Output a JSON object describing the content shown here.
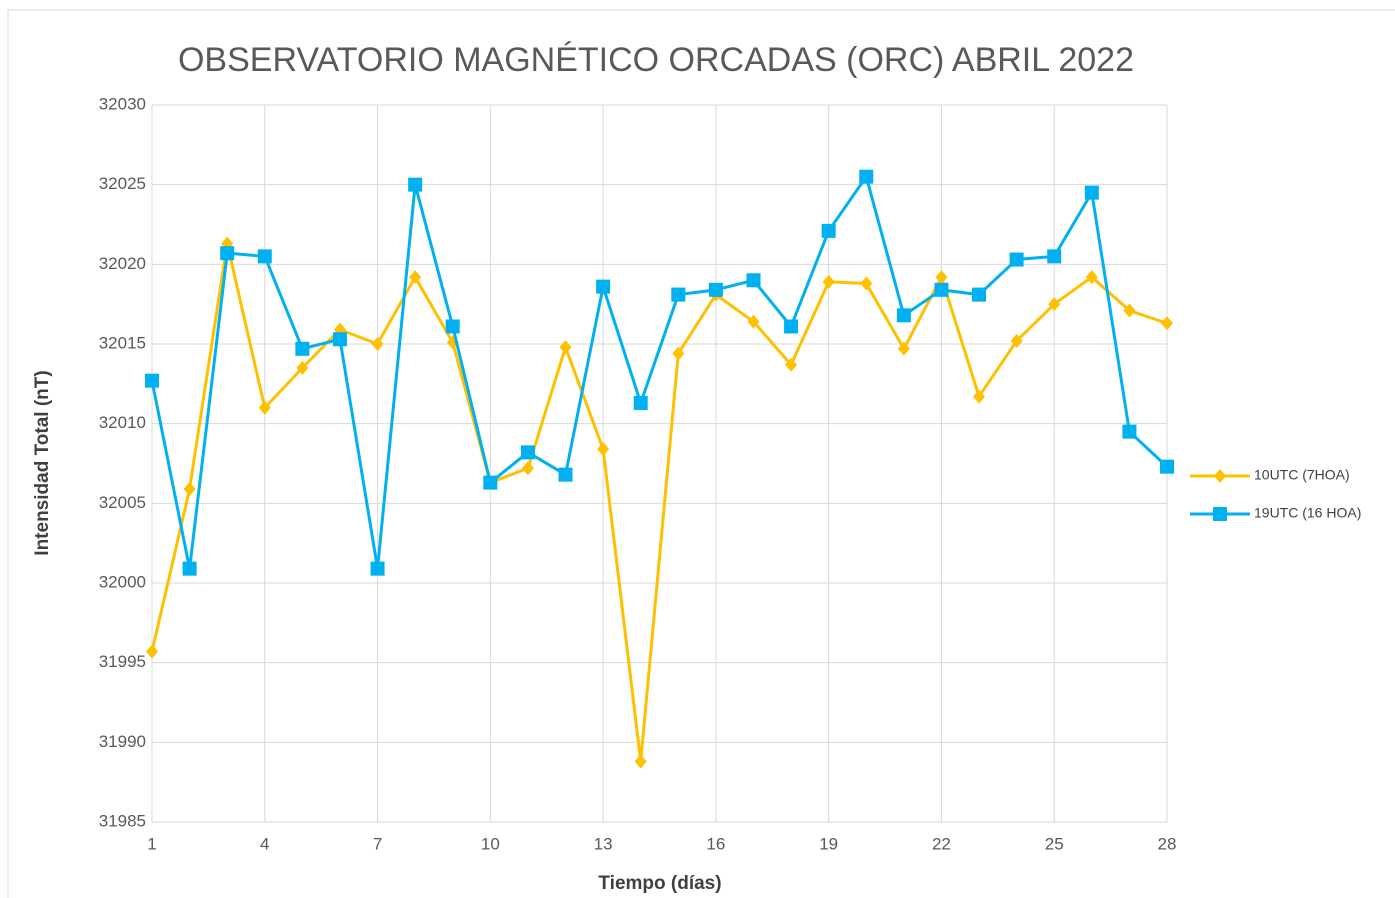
{
  "chart_data": {
    "type": "line",
    "title": "OBSERVATORIO MAGNÉTICO ORCADAS (ORC)  ABRIL 2022",
    "x_label": "Tiempo (días)",
    "y_label": "Intensidad Total (nT)",
    "x": [
      1,
      2,
      3,
      4,
      5,
      6,
      7,
      8,
      9,
      10,
      11,
      12,
      13,
      14,
      15,
      16,
      17,
      18,
      19,
      20,
      21,
      22,
      23,
      24,
      25,
      26,
      27,
      28
    ],
    "series": [
      {
        "name": "10UTC (7HOA)",
        "color": "#FFC000",
        "marker": "diamond",
        "values": [
          31995.7,
          32005.9,
          32021.3,
          32011.0,
          32013.5,
          32015.9,
          32015.0,
          32019.2,
          32015.1,
          32006.3,
          32007.2,
          32014.8,
          32008.4,
          31988.8,
          32014.4,
          32018.1,
          32016.4,
          32013.7,
          32018.9,
          32018.8,
          32014.7,
          32019.2,
          32011.7,
          32015.2,
          32017.5,
          32019.2,
          32017.1,
          32016.3
        ]
      },
      {
        "name": "19UTC (16 HOA)",
        "color": "#00B0F0",
        "marker": "square",
        "values": [
          32012.7,
          32000.9,
          32020.7,
          32020.5,
          32014.7,
          32015.3,
          32000.9,
          32025.0,
          32016.1,
          32006.3,
          32008.2,
          32006.8,
          32018.6,
          32011.3,
          32018.1,
          32018.4,
          32019.0,
          32016.1,
          32022.1,
          32025.5,
          32016.8,
          32018.4,
          32018.1,
          32020.3,
          32020.5,
          32024.5,
          32009.5,
          32007.3
        ]
      }
    ],
    "xlim": [
      1,
      28
    ],
    "xticks": [
      1,
      4,
      7,
      10,
      13,
      16,
      19,
      22,
      25,
      28
    ],
    "ylim": [
      31985,
      32030
    ],
    "yticks": [
      31985,
      31990,
      31995,
      32000,
      32005,
      32010,
      32015,
      32020,
      32025,
      32030
    ],
    "grid": true,
    "legend": "right"
  }
}
